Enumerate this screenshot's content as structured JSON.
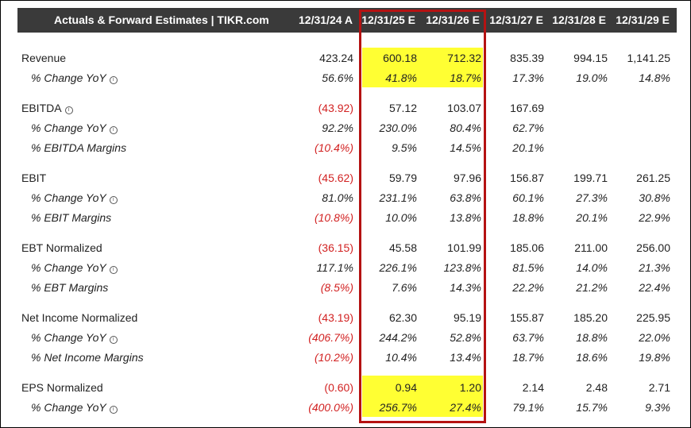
{
  "header": {
    "title": "Actuals & Forward Estimates | TIKR.com",
    "columns": [
      "12/31/24 A",
      "12/31/25 E",
      "12/31/26 E",
      "12/31/27 E",
      "12/31/28 E",
      "12/31/29 E"
    ]
  },
  "rows": [
    {
      "label": "Revenue",
      "sub": false,
      "info": false,
      "values": [
        "423.24",
        "600.18",
        "712.32",
        "835.39",
        "994.15",
        "1,141.25"
      ]
    },
    {
      "label": "% Change YoY",
      "sub": true,
      "info": true,
      "values": [
        "56.6%",
        "41.8%",
        "18.7%",
        "17.3%",
        "19.0%",
        "14.8%"
      ]
    },
    {
      "label": "EBITDA",
      "sub": false,
      "info": true,
      "values": [
        "(43.92)",
        "57.12",
        "103.07",
        "167.69",
        "",
        ""
      ]
    },
    {
      "label": "% Change YoY",
      "sub": true,
      "info": true,
      "values": [
        "92.2%",
        "230.0%",
        "80.4%",
        "62.7%",
        "",
        ""
      ]
    },
    {
      "label": "% EBITDA Margins",
      "sub": true,
      "info": false,
      "values": [
        "(10.4%)",
        "9.5%",
        "14.5%",
        "20.1%",
        "",
        ""
      ]
    },
    {
      "label": "EBIT",
      "sub": false,
      "info": false,
      "values": [
        "(45.62)",
        "59.79",
        "97.96",
        "156.87",
        "199.71",
        "261.25"
      ]
    },
    {
      "label": "% Change YoY",
      "sub": true,
      "info": true,
      "values": [
        "81.0%",
        "231.1%",
        "63.8%",
        "60.1%",
        "27.3%",
        "30.8%"
      ]
    },
    {
      "label": "% EBIT Margins",
      "sub": true,
      "info": false,
      "values": [
        "(10.8%)",
        "10.0%",
        "13.8%",
        "18.8%",
        "20.1%",
        "22.9%"
      ]
    },
    {
      "label": "EBT Normalized",
      "sub": false,
      "info": false,
      "values": [
        "(36.15)",
        "45.58",
        "101.99",
        "185.06",
        "211.00",
        "256.00"
      ]
    },
    {
      "label": "% Change YoY",
      "sub": true,
      "info": true,
      "values": [
        "117.1%",
        "226.1%",
        "123.8%",
        "81.5%",
        "14.0%",
        "21.3%"
      ]
    },
    {
      "label": "% EBT Margins",
      "sub": true,
      "info": false,
      "values": [
        "(8.5%)",
        "7.6%",
        "14.3%",
        "22.2%",
        "21.2%",
        "22.4%"
      ]
    },
    {
      "label": "Net Income Normalized",
      "sub": false,
      "info": false,
      "values": [
        "(43.19)",
        "62.30",
        "95.19",
        "155.87",
        "185.20",
        "225.95"
      ]
    },
    {
      "label": "% Change YoY",
      "sub": true,
      "info": true,
      "values": [
        "(406.7%)",
        "244.2%",
        "52.8%",
        "63.7%",
        "18.8%",
        "22.0%"
      ]
    },
    {
      "label": "% Net Income Margins",
      "sub": true,
      "info": false,
      "values": [
        "(10.2%)",
        "10.4%",
        "13.4%",
        "18.7%",
        "18.6%",
        "19.8%"
      ]
    },
    {
      "label": "EPS Normalized",
      "sub": false,
      "info": false,
      "values": [
        "(0.60)",
        "0.94",
        "1.20",
        "2.14",
        "2.48",
        "2.71"
      ]
    },
    {
      "label": "% Change YoY",
      "sub": true,
      "info": true,
      "values": [
        "(400.0%)",
        "256.7%",
        "27.4%",
        "79.1%",
        "15.7%",
        "9.3%"
      ]
    }
  ],
  "colors": {
    "header_bg": "#3a3a3a",
    "highlight": "#ffff33",
    "negative": "#d22222",
    "outline": "#b51212"
  },
  "info_icon": "info-circle-icon"
}
